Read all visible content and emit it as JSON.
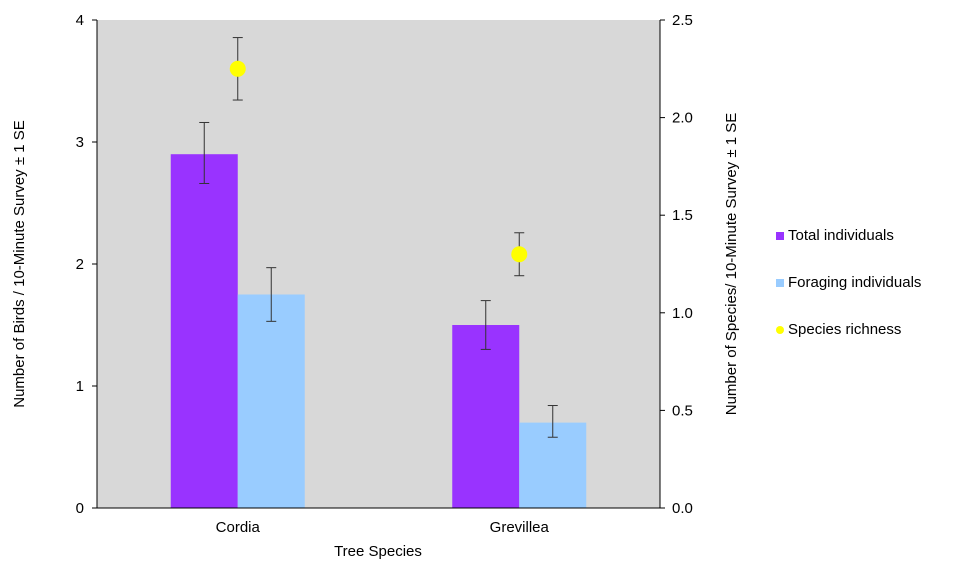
{
  "chart_data": {
    "type": "bar",
    "categories": [
      "Cordia",
      "Grevillea"
    ],
    "xlabel": "Tree Species",
    "ylabel": "Number of Birds / 10-Minute Survey ± 1 SE",
    "y2label": "Number of Species/ 10-Minute Survey ± 1 SE",
    "ylim": [
      0,
      4
    ],
    "y2lim": [
      0,
      2.5
    ],
    "yticks": [
      "0",
      "1",
      "2",
      "3",
      "4"
    ],
    "y2ticks": [
      "0.0",
      "0.5",
      "1.0",
      "1.5",
      "2.0",
      "2.5"
    ],
    "grid": false,
    "legend_position": "right",
    "background": "#d8d8d8",
    "series": [
      {
        "name": "Total individuals",
        "kind": "bar",
        "axis": "left",
        "color": "#9933ff",
        "values": [
          2.9,
          1.5
        ],
        "err_low": [
          2.66,
          1.3
        ],
        "err_high": [
          3.16,
          1.7
        ]
      },
      {
        "name": "Foraging individuals",
        "kind": "bar",
        "axis": "left",
        "color": "#99ccff",
        "values": [
          1.75,
          0.7
        ],
        "err_low": [
          1.53,
          0.58
        ],
        "err_high": [
          1.97,
          0.84
        ]
      },
      {
        "name": "Species richness",
        "kind": "point",
        "axis": "right",
        "color": "#ffff00",
        "values": [
          2.25,
          1.3
        ],
        "err_low": [
          2.09,
          1.19
        ],
        "err_high": [
          2.41,
          1.41
        ]
      }
    ]
  }
}
